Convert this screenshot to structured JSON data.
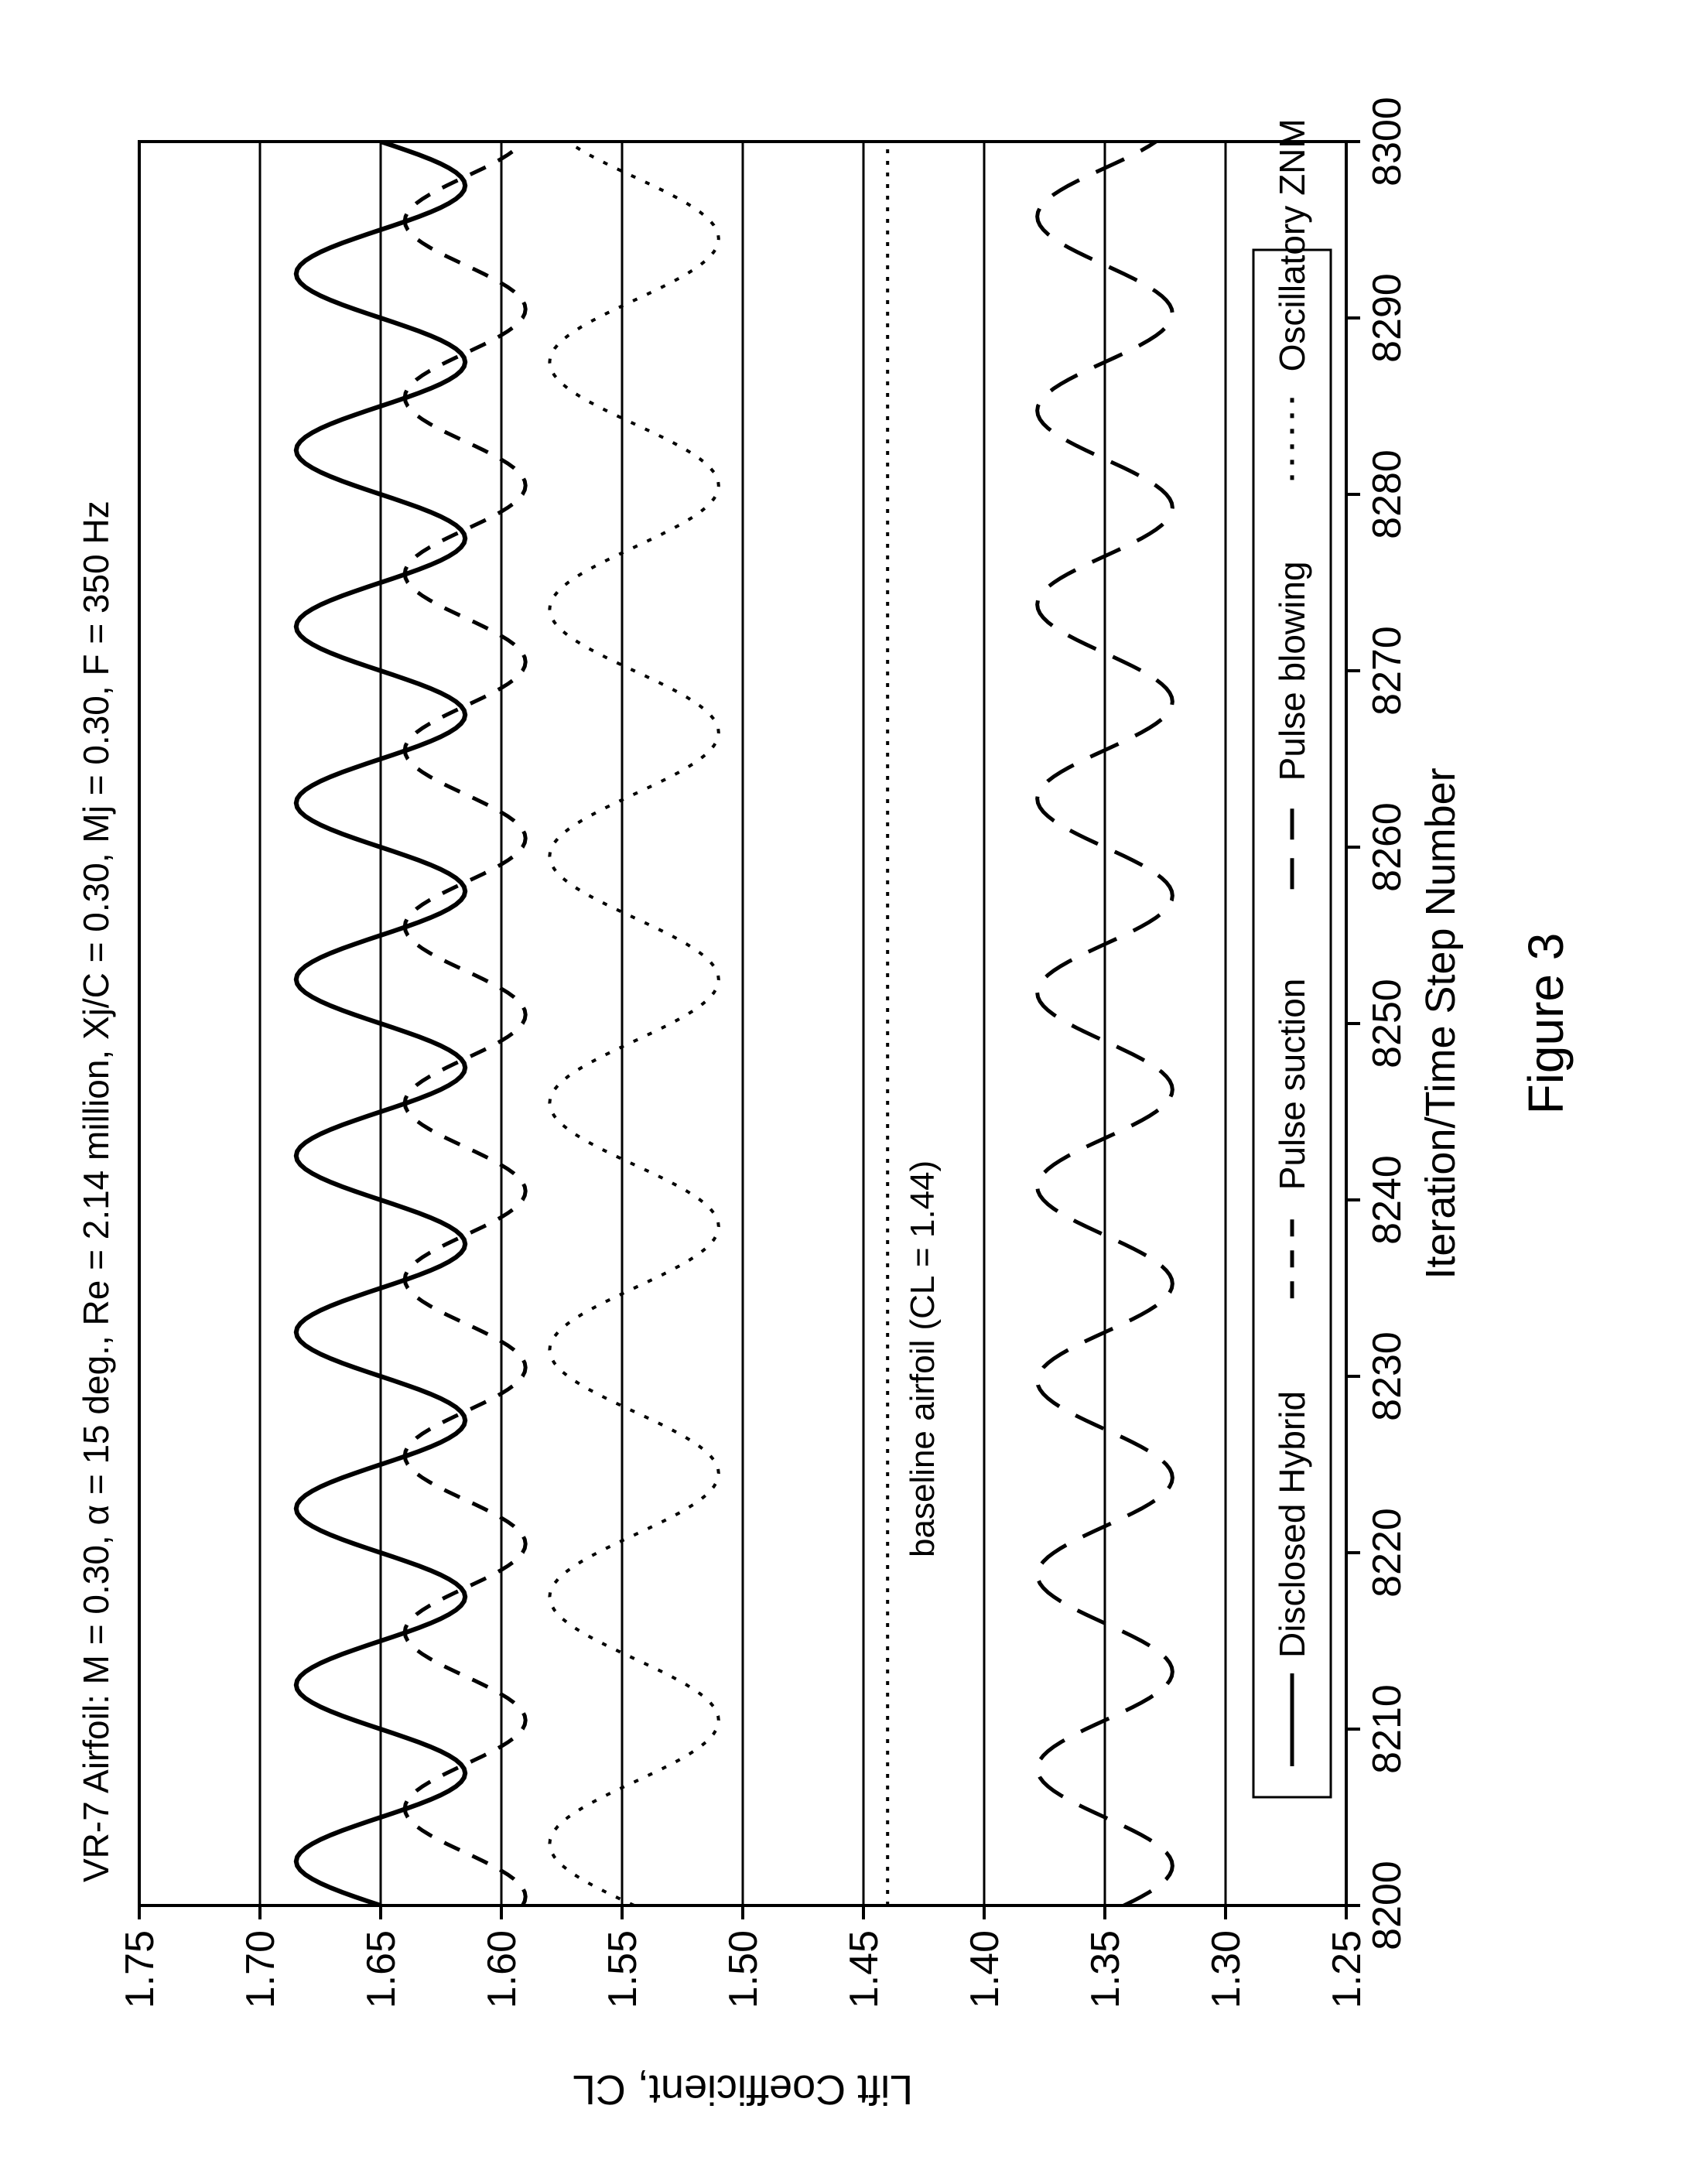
{
  "figure_caption": "Figure 3",
  "chart": {
    "type": "line",
    "title": "VR-7 Airfoil: M = 0.30,   α = 15 deg., Re = 2.14 million, Xj/C = 0.30, Mj = 0.30, F = 350 Hz",
    "xlabel": "Iteration/Time Step Number",
    "ylabel": "Lift Coefficient, CL",
    "xlim": [
      8200,
      8300
    ],
    "ylim": [
      1.25,
      1.75
    ],
    "xticks": [
      8200,
      8210,
      8220,
      8230,
      8240,
      8250,
      8260,
      8270,
      8280,
      8290,
      8300
    ],
    "yticks": [
      1.25,
      1.3,
      1.35,
      1.4,
      1.45,
      1.5,
      1.55,
      1.6,
      1.65,
      1.7,
      1.75
    ],
    "ytick_labels": [
      "1.25",
      "1.30",
      "1.35",
      "1.40",
      "1.45",
      "1.50",
      "1.55",
      "1.60",
      "1.65",
      "1.70",
      "1.75"
    ],
    "xtick_labels": [
      "8200",
      "8210",
      "8220",
      "8230",
      "8240",
      "8250",
      "8260",
      "8270",
      "8280",
      "8290",
      "8300"
    ],
    "background_color": "#ffffff",
    "axis_color": "#000000",
    "axis_linewidth": 4,
    "grid_color": "#000000",
    "grid_linewidth": 3,
    "title_fontsize": 46,
    "tick_fontsize": 52,
    "label_fontsize": 54,
    "caption_fontsize": 64,
    "legend": {
      "border_color": "#000000",
      "border_width": 3,
      "fontsize": 46,
      "items": [
        {
          "key": "hybrid",
          "label": "Disclosed Hybrid",
          "dash": "solid"
        },
        {
          "key": "suction",
          "label": "Pulse suction",
          "dash": "dash-short"
        },
        {
          "key": "blowing",
          "label": "Pulse blowing",
          "dash": "dash-long"
        },
        {
          "key": "znm",
          "label": "Oscillatory ZNM",
          "dash": "dot"
        }
      ]
    },
    "baseline": {
      "value": 1.44,
      "label": "baseline airfoil (CL = 1.44)",
      "dash": "fine-dot",
      "color": "#000000",
      "linewidth": 4
    },
    "series": [
      {
        "key": "hybrid",
        "color": "#000000",
        "linewidth": 6,
        "dash": "solid",
        "center": 1.65,
        "amplitude": 0.035,
        "period": 10.0,
        "phase": 0
      },
      {
        "key": "suction",
        "color": "#000000",
        "linewidth": 5,
        "dash": "dash-short",
        "center": 1.615,
        "amplitude": 0.025,
        "period": 10.0,
        "phase": 3
      },
      {
        "key": "znm",
        "color": "#000000",
        "linewidth": 4,
        "dash": "dot",
        "center": 1.545,
        "amplitude": 0.035,
        "period": 14.0,
        "phase": 0
      },
      {
        "key": "blowing",
        "color": "#000000",
        "linewidth": 5,
        "dash": "dash-long",
        "center": 1.35,
        "amplitude": 0.028,
        "period": 11.0,
        "phase": 5
      }
    ]
  }
}
